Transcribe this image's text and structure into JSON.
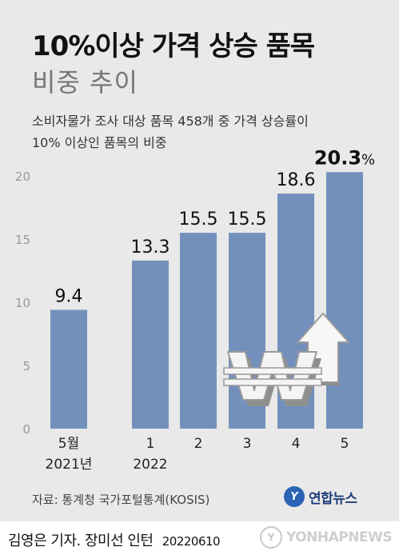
{
  "header": {
    "title": "10%이상 가격 상승 품목",
    "subtitle": "비중 추이",
    "description_line1": "소비자물가 조사 대상 품목 458개 중 가격 상승률이",
    "description_line2": "10% 이상인 품목의 비중"
  },
  "chart_data": {
    "type": "bar",
    "categories": [
      {
        "line1": "5월",
        "line2": "2021년"
      },
      {
        "line1": "1",
        "line2": "2022"
      },
      {
        "line1": "2",
        "line2": ""
      },
      {
        "line1": "3",
        "line2": ""
      },
      {
        "line1": "4",
        "line2": ""
      },
      {
        "line1": "5",
        "line2": ""
      }
    ],
    "values": [
      9.4,
      13.3,
      15.5,
      15.5,
      18.6,
      20.3
    ],
    "value_labels": [
      "9.4",
      "13.3",
      "15.5",
      "15.5",
      "18.6",
      "20.3"
    ],
    "highlight_unit": "%",
    "ylim": [
      0,
      20
    ],
    "yticks": [
      "0",
      "5",
      "10",
      "15",
      "20"
    ],
    "grid": false,
    "bar_color": "#7390bd",
    "highlight_color": "#111111"
  },
  "illustration": {
    "icons": [
      "won-sign-icon",
      "up-arrow-icon"
    ]
  },
  "footer": {
    "source": "자료: 통계청 국가포털통계(KOSIS)",
    "brand": "연합뉴스",
    "credit": "김영은 기자. 장미선 인턴",
    "date": "20220610",
    "watermark": "YONHAPNEWS"
  }
}
